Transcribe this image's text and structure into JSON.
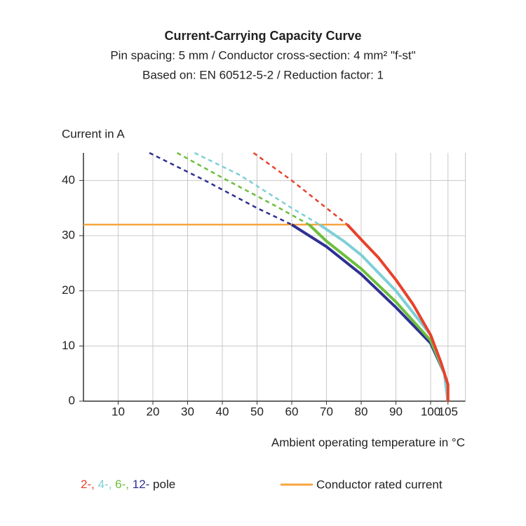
{
  "chart_data": {
    "type": "line",
    "title": "Current-Carrying Capacity Curve",
    "subtitle": [
      "Pin spacing: 5 mm / Conductor cross-section: 4 mm² \"f-st\"",
      "Based on: EN 60512-5-2 / Reduction factor: 1"
    ],
    "y_label": "Current in A",
    "x_label": "Ambient operating temperature in °C",
    "xlim": [
      0,
      110
    ],
    "ylim": [
      0,
      45
    ],
    "xticks": [
      10,
      20,
      30,
      40,
      50,
      60,
      70,
      80,
      90,
      100,
      105
    ],
    "yticks": [
      0,
      10,
      20,
      30,
      40
    ],
    "grid": true,
    "series": [
      {
        "name": "2-,",
        "color": "#e8412c",
        "x": [
          76,
          80,
          85,
          90,
          95,
          100,
          103,
          105,
          105
        ],
        "values": [
          32,
          29.3,
          26,
          22,
          17.5,
          12,
          7,
          3,
          0
        ],
        "dashed_x": [
          49,
          60,
          70,
          76
        ],
        "dashed_values": [
          45,
          40,
          35,
          32
        ]
      },
      {
        "name": "4-,",
        "color": "#7ecfd6",
        "x": [
          68,
          75,
          80,
          90,
          100,
          104,
          105
        ],
        "values": [
          32,
          29,
          26.5,
          20,
          12,
          5,
          0
        ],
        "dashed_x": [
          32,
          45,
          60,
          68
        ],
        "dashed_values": [
          45,
          41,
          35,
          32
        ]
      },
      {
        "name": "6-,",
        "color": "#6cbf3c",
        "x": [
          65,
          70,
          80,
          90,
          100,
          104,
          105
        ],
        "values": [
          32,
          29,
          24,
          18,
          11,
          5,
          0
        ],
        "dashed_x": [
          27,
          40,
          55,
          65
        ],
        "dashed_values": [
          45,
          40.5,
          35.5,
          32
        ]
      },
      {
        "name": "12-",
        "color": "#2e3192",
        "x": [
          60,
          70,
          80,
          90,
          100,
          104,
          105
        ],
        "values": [
          32,
          28,
          23,
          17,
          10.5,
          5,
          0
        ],
        "dashed_x": [
          19,
          35,
          50,
          60
        ],
        "dashed_values": [
          45,
          40,
          35,
          32
        ]
      }
    ],
    "legend_suffix": "pole",
    "rated_current": {
      "name": "Conductor rated current",
      "color": "#f7a541",
      "x": [
        0,
        76
      ],
      "values": [
        32,
        32
      ]
    }
  }
}
